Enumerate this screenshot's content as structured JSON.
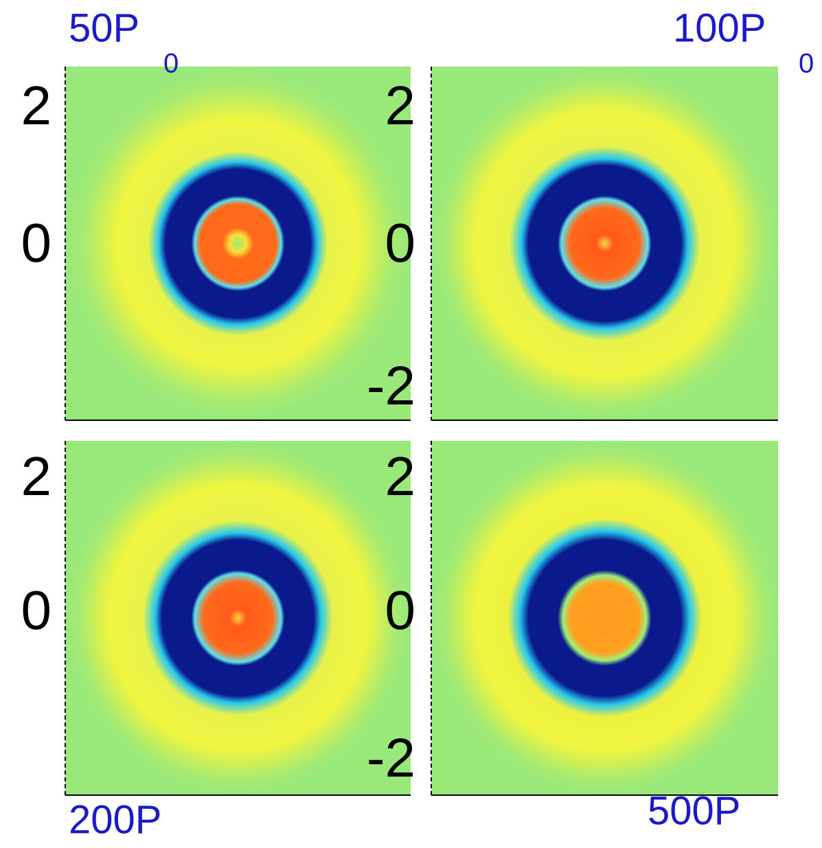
{
  "panels": [
    {
      "label": {
        "main": "50P",
        "sub": "0"
      },
      "yticks": [
        "2",
        "0"
      ]
    },
    {
      "label": {
        "main": "100P",
        "sub": "0"
      },
      "yticks": [
        "2",
        "0",
        "-2"
      ]
    },
    {
      "label": {
        "main": "200P"
      },
      "yticks": [
        "2",
        "0"
      ]
    },
    {
      "label": {
        "main": "500P"
      },
      "yticks": [
        "2",
        "0",
        "-2"
      ]
    }
  ]
}
